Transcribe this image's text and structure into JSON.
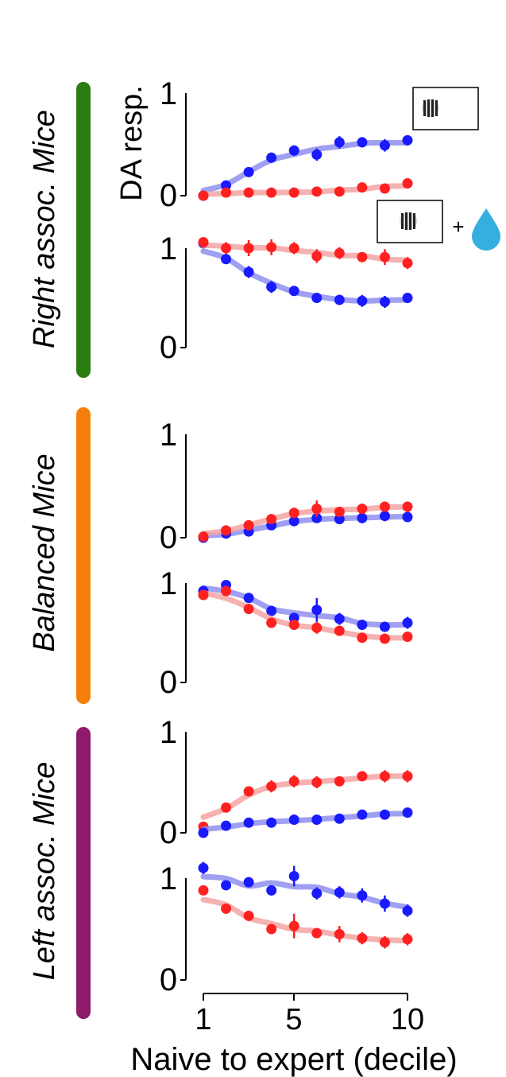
{
  "groups": [
    {
      "label": "Right assoc. Mice",
      "color": "#2a7d10"
    },
    {
      "label": "Balanced Mice",
      "color": "#f57f0a"
    },
    {
      "label": "Left assoc. Mice",
      "color": "#8e1a6b"
    }
  ],
  "ylabel": "DA resp.",
  "xlabel": "Naive to expert (decile)",
  "x_ticks": [
    "1",
    "5",
    "10"
  ],
  "y_tick_top": "1",
  "y_tick_bottom": "0",
  "legend": {
    "plus": "+"
  },
  "colors": {
    "blue": "#1a1aff",
    "red": "#ff2020",
    "blue_fit": "#8f8ff0",
    "red_fit": "#f4a3a3",
    "water": "#35aee0"
  },
  "chart_data": [
    {
      "type": "line",
      "group": "Right assoc. Mice",
      "x": [
        1,
        2,
        3,
        4,
        5,
        6,
        7,
        8,
        9,
        10
      ],
      "ylim": [
        0,
        1
      ],
      "series": [
        {
          "color": "blue",
          "values": [
            0.0,
            0.1,
            0.23,
            0.37,
            0.44,
            0.4,
            0.52,
            0.52,
            0.49,
            0.54
          ],
          "err": [
            0.02,
            0.04,
            0.04,
            0.05,
            0.05,
            0.06,
            0.06,
            0.05,
            0.06,
            0.05
          ]
        },
        {
          "color": "red",
          "values": [
            0.0,
            0.03,
            0.03,
            0.03,
            0.03,
            0.04,
            0.04,
            0.08,
            0.07,
            0.12
          ],
          "err": [
            0.02,
            0.02,
            0.02,
            0.02,
            0.02,
            0.02,
            0.02,
            0.03,
            0.03,
            0.03
          ]
        }
      ]
    },
    {
      "type": "line",
      "group": "Right assoc. Mice",
      "x": [
        1,
        2,
        3,
        4,
        5,
        6,
        7,
        8,
        9,
        10
      ],
      "ylim": [
        0,
        1
      ],
      "series": [
        {
          "color": "blue",
          "values": [
            1.05,
            0.89,
            0.76,
            0.61,
            0.57,
            0.5,
            0.48,
            0.47,
            0.46,
            0.5
          ],
          "err": [
            0.04,
            0.05,
            0.06,
            0.06,
            0.05,
            0.04,
            0.05,
            0.06,
            0.06,
            0.05
          ]
        },
        {
          "color": "red",
          "values": [
            1.06,
            1.0,
            1.0,
            1.01,
            1.0,
            0.92,
            0.95,
            0.91,
            0.91,
            0.85
          ],
          "err": [
            0.04,
            0.06,
            0.08,
            0.08,
            0.06,
            0.07,
            0.06,
            0.05,
            0.08,
            0.06
          ]
        }
      ]
    },
    {
      "type": "line",
      "group": "Balanced Mice",
      "x": [
        1,
        2,
        3,
        4,
        5,
        6,
        7,
        8,
        9,
        10
      ],
      "ylim": [
        0,
        1
      ],
      "series": [
        {
          "color": "blue",
          "values": [
            0.0,
            0.04,
            0.06,
            0.12,
            0.16,
            0.19,
            0.18,
            0.19,
            0.21,
            0.2
          ],
          "err": [
            0.02,
            0.02,
            0.03,
            0.03,
            0.04,
            0.04,
            0.04,
            0.05,
            0.05,
            0.04
          ]
        },
        {
          "color": "red",
          "values": [
            0.01,
            0.07,
            0.12,
            0.18,
            0.24,
            0.28,
            0.25,
            0.28,
            0.3,
            0.3
          ],
          "err": [
            0.02,
            0.03,
            0.04,
            0.04,
            0.05,
            0.08,
            0.04,
            0.04,
            0.05,
            0.04
          ]
        }
      ]
    },
    {
      "type": "line",
      "group": "Balanced Mice",
      "x": [
        1,
        2,
        3,
        4,
        5,
        6,
        7,
        8,
        9,
        10
      ],
      "ylim": [
        0,
        1
      ],
      "series": [
        {
          "color": "blue",
          "values": [
            0.92,
            0.98,
            0.85,
            0.72,
            0.65,
            0.73,
            0.64,
            0.58,
            0.56,
            0.6
          ],
          "err": [
            0.04,
            0.04,
            0.04,
            0.04,
            0.05,
            0.12,
            0.06,
            0.05,
            0.05,
            0.06
          ]
        },
        {
          "color": "red",
          "values": [
            0.88,
            0.92,
            0.74,
            0.6,
            0.58,
            0.55,
            0.52,
            0.45,
            0.44,
            0.46
          ],
          "err": [
            0.04,
            0.04,
            0.04,
            0.04,
            0.04,
            0.06,
            0.04,
            0.04,
            0.04,
            0.05
          ]
        }
      ]
    },
    {
      "type": "line",
      "group": "Left assoc. Mice",
      "x": [
        1,
        2,
        3,
        4,
        5,
        6,
        7,
        8,
        9,
        10
      ],
      "ylim": [
        0,
        1
      ],
      "series": [
        {
          "color": "red",
          "values": [
            0.06,
            0.25,
            0.41,
            0.46,
            0.51,
            0.5,
            0.51,
            0.56,
            0.56,
            0.56
          ],
          "err": [
            0.03,
            0.04,
            0.05,
            0.06,
            0.06,
            0.06,
            0.05,
            0.05,
            0.06,
            0.06
          ]
        },
        {
          "color": "blue",
          "values": [
            0.0,
            0.07,
            0.1,
            0.1,
            0.13,
            0.13,
            0.14,
            0.18,
            0.18,
            0.2
          ],
          "err": [
            0.02,
            0.03,
            0.03,
            0.03,
            0.03,
            0.03,
            0.03,
            0.03,
            0.03,
            0.04
          ]
        }
      ]
    },
    {
      "type": "line",
      "group": "Left assoc. Mice",
      "x": [
        1,
        2,
        3,
        4,
        5,
        6,
        7,
        8,
        9,
        10
      ],
      "ylim": [
        0,
        1
      ],
      "series": [
        {
          "color": "blue",
          "values": [
            1.1,
            0.93,
            0.96,
            0.88,
            1.02,
            0.85,
            0.86,
            0.83,
            0.75,
            0.68
          ],
          "err": [
            0.06,
            0.03,
            0.05,
            0.05,
            0.1,
            0.06,
            0.06,
            0.07,
            0.08,
            0.06
          ]
        },
        {
          "color": "red",
          "values": [
            0.88,
            0.7,
            0.63,
            0.5,
            0.53,
            0.46,
            0.45,
            0.41,
            0.37,
            0.4
          ],
          "err": [
            0.04,
            0.05,
            0.05,
            0.05,
            0.12,
            0.05,
            0.08,
            0.06,
            0.06,
            0.06
          ]
        }
      ]
    }
  ]
}
